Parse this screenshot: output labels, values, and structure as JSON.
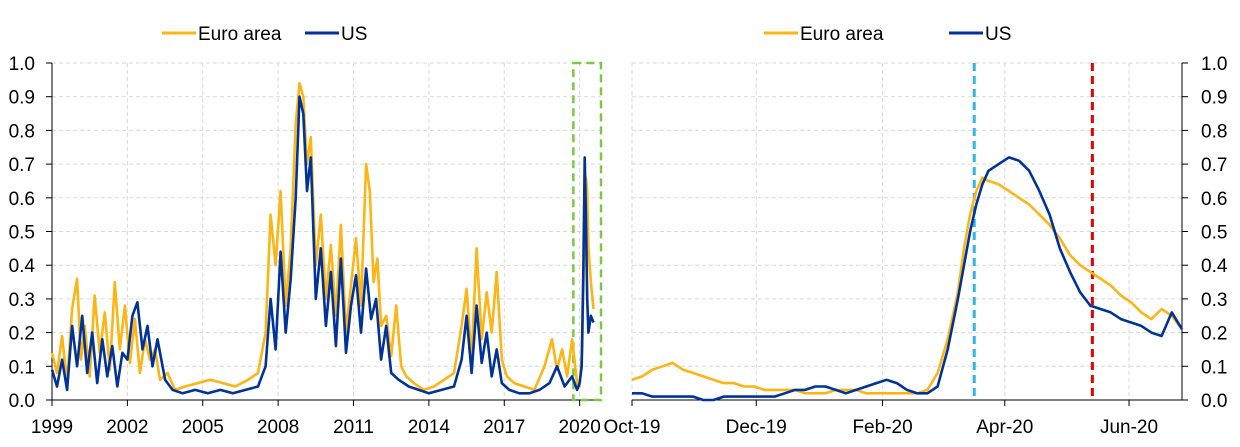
{
  "colors": {
    "euro": "#FDB515",
    "us": "#003399",
    "grid": "#D9D9D9",
    "box": "#7AC943",
    "vline_blue": "#33B3E6",
    "vline_red": "#E60000"
  },
  "chart_data": [
    {
      "type": "line",
      "legend": [
        "Euro area",
        "US"
      ],
      "legend_position": "top",
      "ylim": [
        0,
        1
      ],
      "yticks": [
        "0.0",
        "0.1",
        "0.2",
        "0.3",
        "0.4",
        "0.5",
        "0.6",
        "0.7",
        "0.8",
        "0.9",
        "1.0"
      ],
      "xlim": [
        1999.0,
        2020.85
      ],
      "xticks": [
        "1999",
        "2002",
        "2005",
        "2008",
        "2011",
        "2014",
        "2017",
        "2020"
      ],
      "grid": true,
      "highlight_box": {
        "x_start": 2019.75,
        "x_end": 2020.85,
        "style": "dashed"
      },
      "series": [
        {
          "name": "Euro area",
          "x": [
            1999.0,
            1999.2,
            1999.4,
            1999.6,
            1999.8,
            2000.0,
            2000.15,
            2000.3,
            2000.5,
            2000.7,
            2000.9,
            2001.1,
            2001.3,
            2001.5,
            2001.7,
            2001.9,
            2002.1,
            2002.3,
            2002.5,
            2002.7,
            2002.9,
            2003.1,
            2003.3,
            2003.6,
            2003.9,
            2004.3,
            2004.8,
            2005.3,
            2005.8,
            2006.3,
            2006.8,
            2007.2,
            2007.5,
            2007.7,
            2007.9,
            2008.1,
            2008.3,
            2008.5,
            2008.7,
            2008.85,
            2009.0,
            2009.15,
            2009.3,
            2009.5,
            2009.7,
            2009.9,
            2010.1,
            2010.3,
            2010.5,
            2010.7,
            2010.9,
            2011.1,
            2011.3,
            2011.5,
            2011.65,
            2011.8,
            2011.95,
            2012.1,
            2012.3,
            2012.5,
            2012.7,
            2012.9,
            2013.1,
            2013.4,
            2013.8,
            2014.2,
            2014.6,
            2015.0,
            2015.3,
            2015.5,
            2015.7,
            2015.9,
            2016.1,
            2016.3,
            2016.5,
            2016.7,
            2016.9,
            2017.1,
            2017.4,
            2017.8,
            2018.2,
            2018.6,
            2018.9,
            2019.1,
            2019.3,
            2019.5,
            2019.7,
            2019.9,
            2020.0,
            2020.1,
            2020.2,
            2020.25,
            2020.3,
            2020.35,
            2020.45,
            2020.55
          ],
          "y": [
            0.14,
            0.08,
            0.19,
            0.05,
            0.27,
            0.36,
            0.12,
            0.22,
            0.07,
            0.31,
            0.14,
            0.26,
            0.09,
            0.35,
            0.15,
            0.28,
            0.11,
            0.24,
            0.08,
            0.18,
            0.12,
            0.15,
            0.06,
            0.08,
            0.03,
            0.04,
            0.05,
            0.06,
            0.05,
            0.04,
            0.06,
            0.08,
            0.2,
            0.55,
            0.4,
            0.62,
            0.28,
            0.45,
            0.82,
            0.94,
            0.9,
            0.7,
            0.78,
            0.4,
            0.55,
            0.3,
            0.46,
            0.25,
            0.52,
            0.2,
            0.34,
            0.48,
            0.28,
            0.7,
            0.62,
            0.35,
            0.42,
            0.22,
            0.25,
            0.13,
            0.28,
            0.1,
            0.07,
            0.05,
            0.03,
            0.04,
            0.06,
            0.08,
            0.22,
            0.33,
            0.12,
            0.45,
            0.18,
            0.32,
            0.2,
            0.38,
            0.12,
            0.07,
            0.05,
            0.04,
            0.03,
            0.1,
            0.18,
            0.09,
            0.15,
            0.07,
            0.18,
            0.05,
            0.04,
            0.15,
            0.52,
            0.66,
            0.62,
            0.45,
            0.35,
            0.27
          ]
        },
        {
          "name": "US",
          "x": [
            1999.0,
            1999.2,
            1999.4,
            1999.6,
            1999.8,
            2000.0,
            2000.2,
            2000.4,
            2000.6,
            2000.8,
            2001.0,
            2001.2,
            2001.4,
            2001.6,
            2001.8,
            2002.0,
            2002.2,
            2002.4,
            2002.6,
            2002.8,
            2003.0,
            2003.2,
            2003.5,
            2003.8,
            2004.2,
            2004.7,
            2005.2,
            2005.7,
            2006.2,
            2006.7,
            2007.2,
            2007.5,
            2007.7,
            2007.9,
            2008.1,
            2008.3,
            2008.5,
            2008.7,
            2008.85,
            2009.0,
            2009.15,
            2009.3,
            2009.5,
            2009.7,
            2009.9,
            2010.1,
            2010.3,
            2010.5,
            2010.7,
            2010.9,
            2011.1,
            2011.3,
            2011.5,
            2011.7,
            2011.9,
            2012.1,
            2012.3,
            2012.5,
            2012.8,
            2013.2,
            2013.6,
            2014.0,
            2014.5,
            2015.0,
            2015.3,
            2015.5,
            2015.7,
            2015.9,
            2016.1,
            2016.3,
            2016.5,
            2016.7,
            2016.9,
            2017.2,
            2017.6,
            2018.0,
            2018.4,
            2018.8,
            2019.1,
            2019.4,
            2019.7,
            2019.9,
            2020.0,
            2020.08,
            2020.15,
            2020.2,
            2020.25,
            2020.3,
            2020.35,
            2020.45,
            2020.55
          ],
          "y": [
            0.09,
            0.04,
            0.12,
            0.03,
            0.22,
            0.1,
            0.25,
            0.08,
            0.2,
            0.05,
            0.18,
            0.07,
            0.16,
            0.04,
            0.14,
            0.12,
            0.25,
            0.29,
            0.15,
            0.22,
            0.1,
            0.18,
            0.06,
            0.03,
            0.02,
            0.03,
            0.02,
            0.03,
            0.02,
            0.03,
            0.04,
            0.1,
            0.3,
            0.15,
            0.44,
            0.2,
            0.36,
            0.6,
            0.9,
            0.85,
            0.62,
            0.72,
            0.3,
            0.45,
            0.22,
            0.38,
            0.16,
            0.42,
            0.14,
            0.28,
            0.37,
            0.2,
            0.39,
            0.24,
            0.3,
            0.12,
            0.22,
            0.08,
            0.06,
            0.04,
            0.03,
            0.02,
            0.03,
            0.04,
            0.12,
            0.25,
            0.08,
            0.28,
            0.11,
            0.2,
            0.07,
            0.15,
            0.05,
            0.03,
            0.02,
            0.02,
            0.03,
            0.05,
            0.1,
            0.04,
            0.07,
            0.03,
            0.05,
            0.1,
            0.4,
            0.72,
            0.55,
            0.3,
            0.2,
            0.25,
            0.23
          ]
        }
      ]
    },
    {
      "type": "line",
      "legend": [
        "Euro area",
        "US"
      ],
      "legend_position": "top",
      "ylim": [
        0,
        1
      ],
      "yticks": [
        "0.0",
        "0.1",
        "0.2",
        "0.3",
        "0.4",
        "0.5",
        "0.6",
        "0.7",
        "0.8",
        "0.9",
        "1.0"
      ],
      "y_axis_side": "right",
      "xlim": [
        0,
        270
      ],
      "xtick_positions": [
        0,
        61,
        123,
        183,
        244
      ],
      "xticks": [
        "Oct-19",
        "Dec-19",
        "Feb-20",
        "Apr-20",
        "Jun-20"
      ],
      "grid": true,
      "vertical_markers": [
        {
          "x": 168,
          "color": "blue",
          "style": "dashed"
        },
        {
          "x": 226,
          "color": "red",
          "style": "dashed"
        }
      ],
      "series": [
        {
          "name": "Euro area",
          "x": [
            0,
            5,
            10,
            15,
            20,
            25,
            30,
            35,
            40,
            45,
            50,
            55,
            60,
            65,
            70,
            75,
            80,
            85,
            90,
            95,
            100,
            105,
            110,
            115,
            120,
            125,
            130,
            135,
            140,
            145,
            150,
            155,
            160,
            163,
            166,
            169,
            172,
            175,
            180,
            185,
            190,
            195,
            200,
            205,
            210,
            215,
            220,
            225,
            230,
            235,
            240,
            245,
            250,
            255,
            260,
            265,
            270
          ],
          "y": [
            0.06,
            0.07,
            0.09,
            0.1,
            0.11,
            0.09,
            0.08,
            0.07,
            0.06,
            0.05,
            0.05,
            0.04,
            0.04,
            0.03,
            0.03,
            0.03,
            0.03,
            0.02,
            0.02,
            0.02,
            0.03,
            0.03,
            0.03,
            0.02,
            0.02,
            0.02,
            0.02,
            0.02,
            0.02,
            0.03,
            0.08,
            0.18,
            0.32,
            0.45,
            0.55,
            0.62,
            0.66,
            0.65,
            0.64,
            0.62,
            0.6,
            0.58,
            0.55,
            0.52,
            0.48,
            0.43,
            0.4,
            0.38,
            0.36,
            0.34,
            0.31,
            0.29,
            0.26,
            0.24,
            0.27,
            0.25,
            0.21
          ]
        },
        {
          "name": "US",
          "x": [
            0,
            5,
            10,
            15,
            20,
            25,
            30,
            35,
            40,
            45,
            50,
            55,
            60,
            65,
            70,
            75,
            80,
            85,
            90,
            95,
            100,
            105,
            110,
            115,
            120,
            125,
            130,
            135,
            140,
            145,
            150,
            155,
            160,
            163,
            166,
            169,
            172,
            175,
            180,
            185,
            190,
            195,
            200,
            205,
            210,
            215,
            220,
            225,
            230,
            235,
            240,
            245,
            250,
            255,
            260,
            265,
            270
          ],
          "y": [
            0.02,
            0.02,
            0.01,
            0.01,
            0.01,
            0.01,
            0.01,
            0.0,
            0.0,
            0.01,
            0.01,
            0.01,
            0.01,
            0.01,
            0.01,
            0.02,
            0.03,
            0.03,
            0.04,
            0.04,
            0.03,
            0.02,
            0.03,
            0.04,
            0.05,
            0.06,
            0.05,
            0.03,
            0.02,
            0.02,
            0.04,
            0.15,
            0.3,
            0.4,
            0.5,
            0.58,
            0.64,
            0.68,
            0.7,
            0.72,
            0.71,
            0.68,
            0.62,
            0.55,
            0.45,
            0.38,
            0.32,
            0.28,
            0.27,
            0.26,
            0.24,
            0.23,
            0.22,
            0.2,
            0.19,
            0.26,
            0.21
          ]
        }
      ]
    }
  ]
}
